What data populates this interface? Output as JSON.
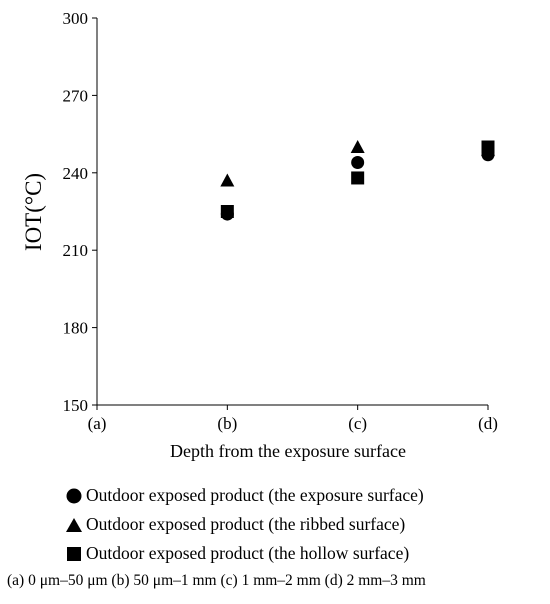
{
  "chart_data": {
    "type": "scatter",
    "title": "",
    "xlabel": "Depth from the exposure surface",
    "ylabel": "IOT(°C)",
    "categories": [
      "(a)",
      "(b)",
      "(c)",
      "(d)"
    ],
    "ylim": [
      150,
      300
    ],
    "yticks": [
      "150",
      "180",
      "210",
      "240",
      "270",
      "300"
    ],
    "grid": false,
    "legend_position": "bottom",
    "series": [
      {
        "name": "Outdoor exposed product (the exposure surface)",
        "marker": "circle",
        "color": "#000000",
        "values": [
          null,
          224,
          244,
          247
        ]
      },
      {
        "name": "Outdoor exposed product (the ribbed surface)",
        "marker": "triangle",
        "color": "#000000",
        "values": [
          null,
          237,
          250,
          249
        ]
      },
      {
        "name": "Outdoor exposed product (the hollow surface)",
        "marker": "square",
        "color": "#000000",
        "values": [
          null,
          225,
          238,
          250
        ]
      }
    ]
  },
  "footnote": "(a) 0 μm–50 μm  (b) 50 μm–1 mm  (c) 1 mm–2 mm  (d) 2 mm–3 mm"
}
